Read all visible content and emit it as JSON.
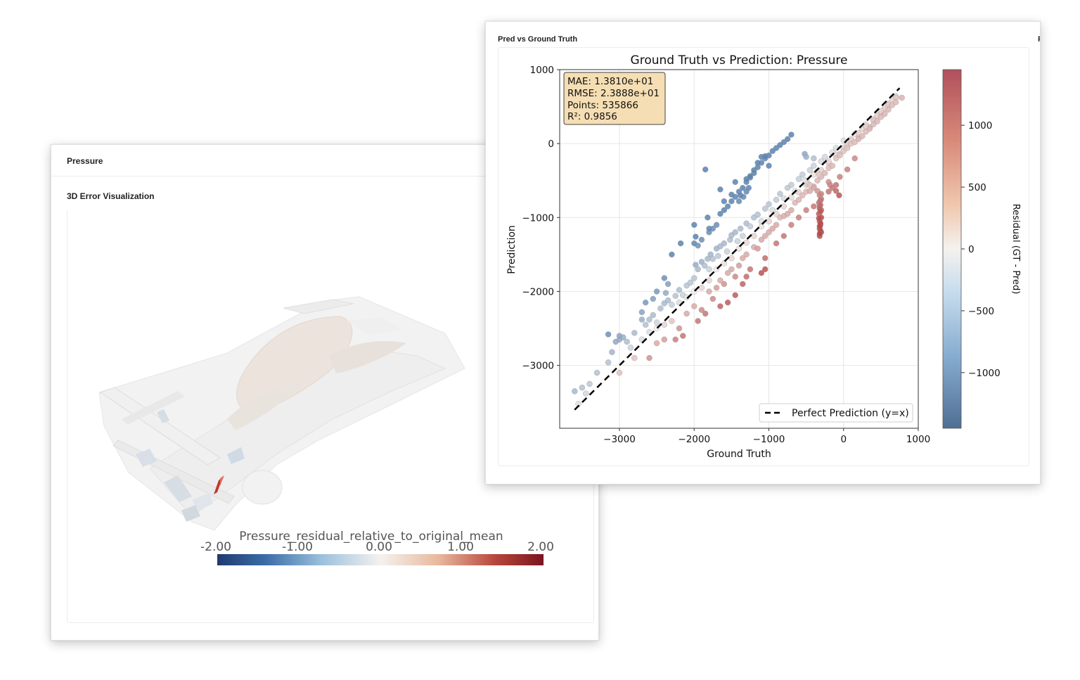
{
  "left_panel": {
    "title": "Pressure",
    "section_title": "3D Error Visualization",
    "colorbar": {
      "label": "Pressure_residual_relative_to_original_mean",
      "ticks": [
        "-2.00",
        "-1.00",
        "0.00",
        "1.00",
        "2.00"
      ],
      "range": [
        -2.0,
        2.0
      ]
    }
  },
  "right_panel": {
    "title": "Pred vs Ground Truth",
    "stats": {
      "mae": "MAE: 1.3810e+01",
      "rmse": "RMSE: 2.3888e+01",
      "points": "Points: 535866",
      "r2": "R²: 0.9856"
    }
  },
  "colors": {
    "diverging_low": "#2b4a7e",
    "diverging_mid": "#f4f2ef",
    "diverging_high": "#8a1b24",
    "stats_box": "#f5deb3",
    "reference_line": "#000000"
  },
  "chart_data": {
    "type": "scatter",
    "title": "Ground Truth vs Prediction: Pressure",
    "xlabel": "Ground Truth",
    "ylabel": "Prediction",
    "xlim": [
      -3800,
      1000
    ],
    "ylim": [
      -3850,
      1000
    ],
    "xticks": [
      -3000,
      -2000,
      -1000,
      0,
      1000
    ],
    "yticks": [
      1000,
      0,
      -1000,
      -2000,
      -3000
    ],
    "grid": true,
    "legend": {
      "entry": "Perfect Prediction (y=x)",
      "placement": "lower-right"
    },
    "reference_line": {
      "from": [
        -3600,
        -3600
      ],
      "to": [
        750,
        750
      ]
    },
    "colorbar": {
      "label": "Residual (GT - Pred)",
      "ticks": [
        1000,
        500,
        0,
        -500,
        -1000
      ],
      "range": [
        -1450,
        1450
      ]
    },
    "points": [
      [
        -3600,
        -3350
      ],
      [
        -3550,
        -3520
      ],
      [
        -3500,
        -3300
      ],
      [
        -3450,
        -3380
      ],
      [
        -3400,
        -3250
      ],
      [
        -3300,
        -3100
      ],
      [
        -3150,
        -2960
      ],
      [
        -3100,
        -2820
      ],
      [
        -3050,
        -2680
      ],
      [
        -3000,
        -2650
      ],
      [
        -2950,
        -2620
      ],
      [
        -2900,
        -2680
      ],
      [
        -2850,
        -2760
      ],
      [
        -2800,
        -2560
      ],
      [
        -2700,
        -2380
      ],
      [
        -2650,
        -2450
      ],
      [
        -2600,
        -2380
      ],
      [
        -2550,
        -2320
      ],
      [
        -2500,
        -2420
      ],
      [
        -2450,
        -2230
      ],
      [
        -2400,
        -2160
      ],
      [
        -2380,
        -2020
      ],
      [
        -2350,
        -2120
      ],
      [
        -2300,
        -2180
      ],
      [
        -2250,
        -2060
      ],
      [
        -2200,
        -1980
      ],
      [
        -2150,
        -2050
      ],
      [
        -2100,
        -1920
      ],
      [
        -2050,
        -1880
      ],
      [
        -2000,
        -1820
      ],
      [
        -1980,
        -1640
      ],
      [
        -1950,
        -1700
      ],
      [
        -1900,
        -1600
      ],
      [
        -1860,
        -1650
      ],
      [
        -1820,
        -1560
      ],
      [
        -1800,
        -1700
      ],
      [
        -1780,
        -1500
      ],
      [
        -1750,
        -1560
      ],
      [
        -1700,
        -1420
      ],
      [
        -1680,
        -1520
      ],
      [
        -1650,
        -1390
      ],
      [
        -1600,
        -1350
      ],
      [
        -1560,
        -1460
      ],
      [
        -1520,
        -1300
      ],
      [
        -1500,
        -1240
      ],
      [
        -1450,
        -1200
      ],
      [
        -1420,
        -1320
      ],
      [
        -1380,
        -1150
      ],
      [
        -1350,
        -1250
      ],
      [
        -1300,
        -1080
      ],
      [
        -1250,
        -1120
      ],
      [
        -1200,
        -1000
      ],
      [
        -1150,
        -960
      ],
      [
        -1100,
        -1050
      ],
      [
        -1050,
        -880
      ],
      [
        -1000,
        -820
      ],
      [
        -950,
        -900
      ],
      [
        -900,
        -760
      ],
      [
        -850,
        -680
      ],
      [
        -800,
        -740
      ],
      [
        -750,
        -600
      ],
      [
        -700,
        -560
      ],
      [
        -650,
        -640
      ],
      [
        -600,
        -480
      ],
      [
        -550,
        -420
      ],
      [
        -500,
        -500
      ],
      [
        -450,
        -360
      ],
      [
        -400,
        -300
      ],
      [
        -350,
        -380
      ],
      [
        -300,
        -240
      ],
      [
        -250,
        -180
      ],
      [
        -200,
        -260
      ],
      [
        -150,
        -120
      ],
      [
        -100,
        -60
      ],
      [
        -50,
        -140
      ],
      [
        0,
        40
      ],
      [
        50,
        -20
      ],
      [
        100,
        60
      ],
      [
        150,
        130
      ],
      [
        200,
        80
      ],
      [
        250,
        200
      ],
      [
        300,
        260
      ],
      [
        350,
        220
      ],
      [
        400,
        330
      ],
      [
        450,
        380
      ],
      [
        500,
        420
      ],
      [
        550,
        480
      ],
      [
        600,
        540
      ],
      [
        650,
        600
      ],
      [
        700,
        640
      ],
      [
        780,
        620
      ],
      [
        -1800,
        -1200
      ],
      [
        -1750,
        -1150
      ],
      [
        -1700,
        -1100
      ],
      [
        -1650,
        -950
      ],
      [
        -1600,
        -900
      ],
      [
        -1550,
        -850
      ],
      [
        -1500,
        -780
      ],
      [
        -1450,
        -720
      ],
      [
        -1400,
        -650
      ],
      [
        -1350,
        -600
      ],
      [
        -1300,
        -520
      ],
      [
        -1250,
        -460
      ],
      [
        -1200,
        -400
      ],
      [
        -1150,
        -320
      ],
      [
        -1100,
        -260
      ],
      [
        -1050,
        -200
      ],
      [
        -1000,
        -160
      ],
      [
        -950,
        -100
      ],
      [
        -900,
        -60
      ],
      [
        -850,
        -20
      ],
      [
        -800,
        20
      ],
      [
        -750,
        60
      ],
      [
        -700,
        120
      ],
      [
        -2000,
        -1100
      ],
      [
        -1980,
        -1260
      ],
      [
        -1950,
        -1380
      ],
      [
        -2000,
        -1350
      ],
      [
        -1900,
        -1300
      ],
      [
        -1800,
        -1150
      ],
      [
        -1820,
        -1000
      ],
      [
        -1650,
        -620
      ],
      [
        -1600,
        -780
      ],
      [
        -1500,
        -690
      ],
      [
        -1450,
        -520
      ],
      [
        -1300,
        -480
      ],
      [
        -1250,
        -440
      ],
      [
        -1200,
        -360
      ],
      [
        -1150,
        -260
      ],
      [
        -1100,
        -180
      ],
      [
        -1050,
        -170
      ],
      [
        -1000,
        -300
      ],
      [
        -1300,
        -650
      ],
      [
        -1340,
        -720
      ],
      [
        -1270,
        -600
      ],
      [
        -1400,
        -780
      ],
      [
        -1380,
        -700
      ],
      [
        -2180,
        -1350
      ],
      [
        -2300,
        -1500
      ],
      [
        -2500,
        -2000
      ],
      [
        -2700,
        -2280
      ],
      [
        -3000,
        -2600
      ],
      [
        -3150,
        -2580
      ],
      [
        -2650,
        -2150
      ],
      [
        -2550,
        -2100
      ],
      [
        -2400,
        -1820
      ],
      [
        -2350,
        -1900
      ],
      [
        -1850,
        -350
      ],
      [
        -3000,
        -3100
      ],
      [
        -2800,
        -2900
      ],
      [
        -2700,
        -2650
      ],
      [
        -2600,
        -2550
      ],
      [
        -2500,
        -2500
      ],
      [
        -2400,
        -2450
      ],
      [
        -2200,
        -2150
      ],
      [
        -2100,
        -2080
      ],
      [
        -2000,
        -2000
      ],
      [
        -1900,
        -1950
      ],
      [
        -1800,
        -1850
      ],
      [
        -1700,
        -1700
      ],
      [
        -1600,
        -1620
      ],
      [
        -1500,
        -1550
      ],
      [
        -1400,
        -1420
      ],
      [
        -1300,
        -1340
      ],
      [
        -1200,
        -1250
      ],
      [
        -1100,
        -1120
      ],
      [
        -1000,
        -1050
      ],
      [
        -900,
        -950
      ],
      [
        -800,
        -850
      ],
      [
        -700,
        -730
      ],
      [
        -600,
        -660
      ],
      [
        -500,
        -560
      ],
      [
        -400,
        -420
      ],
      [
        -300,
        -360
      ],
      [
        -200,
        -240
      ],
      [
        -100,
        -150
      ],
      [
        0,
        -60
      ],
      [
        100,
        40
      ],
      [
        200,
        140
      ],
      [
        300,
        230
      ],
      [
        400,
        310
      ],
      [
        500,
        440
      ],
      [
        600,
        520
      ],
      [
        700,
        620
      ],
      [
        -2600,
        -2900
      ],
      [
        -2500,
        -2700
      ],
      [
        -2400,
        -2650
      ],
      [
        -2300,
        -2400
      ],
      [
        -2200,
        -2500
      ],
      [
        -2100,
        -2300
      ],
      [
        -2000,
        -2200
      ],
      [
        -1950,
        -2400
      ],
      [
        -1900,
        -2250
      ],
      [
        -1800,
        -2000
      ],
      [
        -1750,
        -2100
      ],
      [
        -1700,
        -1950
      ],
      [
        -1650,
        -1850
      ],
      [
        -1600,
        -1900
      ],
      [
        -1550,
        -1750
      ],
      [
        -1500,
        -1700
      ],
      [
        -1450,
        -1800
      ],
      [
        -1400,
        -1650
      ],
      [
        -1350,
        -1550
      ],
      [
        -1300,
        -1500
      ],
      [
        -1250,
        -1700
      ],
      [
        -1200,
        -1400
      ],
      [
        -1150,
        -1420
      ],
      [
        -1100,
        -1300
      ],
      [
        -1050,
        -1250
      ],
      [
        -1000,
        -1200
      ],
      [
        -950,
        -1150
      ],
      [
        -900,
        -1100
      ],
      [
        -850,
        -1000
      ],
      [
        -800,
        -980
      ],
      [
        -750,
        -950
      ],
      [
        -700,
        -900
      ],
      [
        -650,
        -800
      ],
      [
        -600,
        -760
      ],
      [
        -550,
        -700
      ],
      [
        -500,
        -650
      ],
      [
        -450,
        -640
      ],
      [
        -400,
        -580
      ],
      [
        -350,
        -500
      ],
      [
        -300,
        -450
      ],
      [
        -250,
        -400
      ],
      [
        -200,
        -330
      ],
      [
        -150,
        -300
      ],
      [
        -100,
        -200
      ],
      [
        -50,
        -160
      ],
      [
        0,
        -100
      ],
      [
        50,
        -60
      ],
      [
        100,
        0
      ],
      [
        150,
        20
      ],
      [
        200,
        60
      ],
      [
        250,
        100
      ],
      [
        300,
        160
      ],
      [
        350,
        200
      ],
      [
        400,
        260
      ],
      [
        450,
        300
      ],
      [
        500,
        360
      ],
      [
        550,
        400
      ],
      [
        600,
        460
      ],
      [
        650,
        520
      ],
      [
        700,
        560
      ],
      [
        -1550,
        -2150
      ],
      [
        -1450,
        -2050
      ],
      [
        -1350,
        -1900
      ],
      [
        -1100,
        -1750
      ],
      [
        -2150,
        -2600
      ],
      [
        -2250,
        -2650
      ],
      [
        -1850,
        -2300
      ],
      [
        -1650,
        -2200
      ],
      [
        -1300,
        -1800
      ],
      [
        -1050,
        -1550
      ],
      [
        -900,
        -1350
      ],
      [
        -800,
        -1250
      ],
      [
        -700,
        -1100
      ],
      [
        -600,
        -1000
      ],
      [
        -500,
        -900
      ],
      [
        -400,
        -850
      ],
      [
        -300,
        -750
      ],
      [
        -200,
        -650
      ],
      [
        -100,
        -560
      ],
      [
        -50,
        -450
      ],
      [
        50,
        -350
      ],
      [
        150,
        -200
      ],
      [
        -1050,
        -1700
      ],
      [
        -520,
        -500
      ],
      [
        -480,
        -540
      ],
      [
        -450,
        -560
      ],
      [
        -400,
        -600
      ],
      [
        -350,
        -640
      ],
      [
        -300,
        -680
      ],
      [
        -200,
        -520
      ],
      [
        -180,
        -560
      ],
      [
        -150,
        -600
      ],
      [
        -100,
        -640
      ],
      [
        -60,
        -700
      ],
      [
        -520,
        -140
      ],
      [
        -500,
        -180
      ],
      [
        -400,
        -200
      ],
      [
        -330,
        -420
      ],
      [
        -320,
        -700
      ],
      [
        -310,
        -770
      ],
      [
        -320,
        -850
      ],
      [
        -300,
        -900
      ],
      [
        -330,
        -950
      ],
      [
        -300,
        -1000
      ],
      [
        -320,
        -1050
      ],
      [
        -310,
        -1100
      ],
      [
        -320,
        -1150
      ],
      [
        -300,
        -1200
      ],
      [
        -320,
        -1250
      ],
      [
        -330,
        -800
      ],
      [
        -310,
        -830
      ],
      [
        -320,
        -880
      ],
      [
        -310,
        -920
      ],
      [
        -330,
        -1010
      ],
      [
        -310,
        -1080
      ],
      [
        -320,
        -1120
      ],
      [
        -310,
        -1180
      ],
      [
        -320,
        -1220
      ]
    ]
  }
}
